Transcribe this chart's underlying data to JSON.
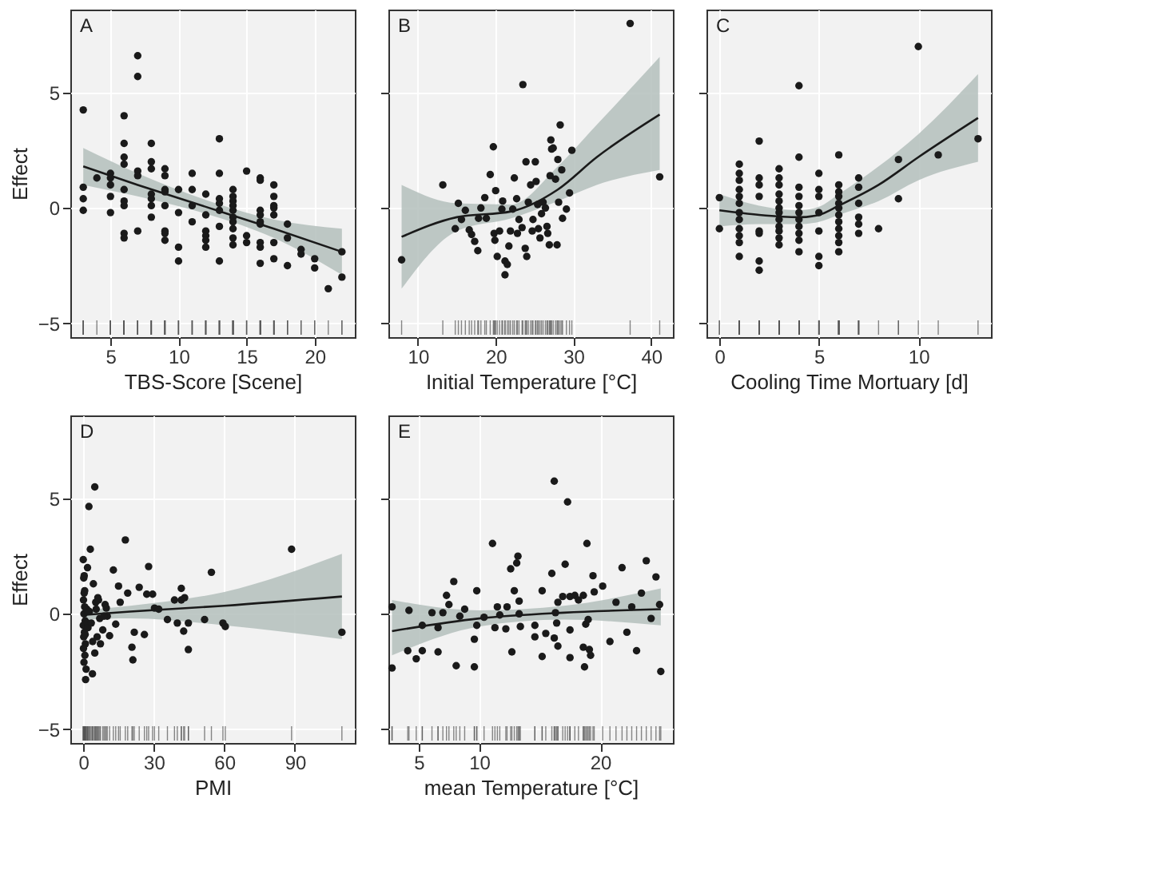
{
  "chart_data": [
    {
      "type": "scatter",
      "title": "A",
      "xlabel": "TBS-Score [Scene]",
      "ylabel": "Effect",
      "xlim": [
        2.05,
        22.95
      ],
      "ylim": [
        -5.6,
        8.6
      ],
      "xticks": [
        5,
        10,
        15,
        20
      ],
      "yticks": [
        -5,
        0,
        5
      ],
      "grid": true,
      "series": [
        {
          "type": "scatter",
          "color": "#1a1a1a",
          "x": [
            3,
            3,
            3,
            3,
            4,
            5,
            5,
            5,
            5,
            5,
            6,
            6,
            6,
            6,
            6,
            6,
            6,
            6,
            6,
            7,
            7,
            7,
            7,
            7,
            8,
            8,
            8,
            8,
            8,
            8,
            8,
            9,
            9,
            9,
            9,
            9,
            9,
            9,
            9,
            10,
            10,
            10,
            10,
            11,
            11,
            11,
            11,
            12,
            12,
            12,
            12,
            12,
            12,
            13,
            13,
            13,
            13,
            13,
            13,
            13,
            14,
            14,
            14,
            14,
            14,
            14,
            14,
            14,
            14,
            14,
            15,
            15,
            15,
            16,
            16,
            16,
            16,
            16,
            16,
            16,
            16,
            16,
            17,
            17,
            17,
            17,
            17,
            17,
            17,
            18,
            18,
            18,
            19,
            19,
            20,
            20,
            21,
            22,
            22
          ],
          "values": [
            4.25,
            0.9,
            0.4,
            -0.1,
            1.3,
            1.5,
            1.3,
            1.0,
            0.5,
            -0.2,
            4.0,
            2.8,
            2.2,
            1.9,
            0.8,
            0.3,
            0.1,
            -1.1,
            -1.3,
            6.6,
            5.7,
            1.6,
            1.4,
            -1.0,
            2.8,
            2.0,
            1.7,
            0.6,
            0.4,
            0.1,
            -0.4,
            1.7,
            1.4,
            0.8,
            0.7,
            0.1,
            -1.0,
            -1.1,
            -1.4,
            0.8,
            -0.2,
            -1.7,
            -2.3,
            1.5,
            0.8,
            0.1,
            -0.6,
            0.6,
            -0.3,
            -1.0,
            -1.2,
            -1.4,
            -1.7,
            3.0,
            1.5,
            0.4,
            0.2,
            -0.1,
            -0.8,
            -2.3,
            0.8,
            0.5,
            0.3,
            0.1,
            -0.1,
            -0.4,
            -0.6,
            -0.9,
            -1.3,
            -1.6,
            1.6,
            -1.2,
            -1.5,
            1.3,
            1.2,
            -0.1,
            -0.3,
            -0.6,
            -0.7,
            -1.5,
            -1.7,
            -2.4,
            1.0,
            0.5,
            0.1,
            0.0,
            -0.3,
            -1.5,
            -2.2,
            -0.7,
            -1.3,
            -2.5,
            -1.8,
            -2.0,
            -2.2,
            -2.6,
            -3.5,
            -1.9,
            -3.0
          ]
        },
        {
          "type": "line",
          "color": "#1a1a1a",
          "x": [
            3,
            7,
            12,
            17,
            22
          ],
          "values": [
            1.8,
            1.0,
            0.05,
            -0.9,
            -1.9
          ],
          "lower": [
            1.0,
            0.5,
            -0.25,
            -1.3,
            -2.9
          ],
          "upper": [
            2.6,
            1.5,
            0.35,
            -0.5,
            -0.9
          ]
        }
      ]
    },
    {
      "type": "scatter",
      "title": "B",
      "xlabel": "Initial Temperature [°C]",
      "xlim": [
        6.2,
        42.8
      ],
      "ylim": [
        -5.6,
        8.6
      ],
      "xticks": [
        10,
        20,
        30,
        40
      ],
      "yticks": [
        -5,
        0,
        5
      ],
      "grid": true,
      "tick_labels": "x",
      "series": [
        {
          "type": "scatter",
          "color": "#1a1a1a",
          "x": [
            7.9,
            13.2,
            14.8,
            15.2,
            15.6,
            16.1,
            16.6,
            16.9,
            17.3,
            17.7,
            17.8,
            18.1,
            18.6,
            18.8,
            19.3,
            19.7,
            19.8,
            19.9,
            20.0,
            20.2,
            20.5,
            20.8,
            20.9,
            21.2,
            21.2,
            21.5,
            21.7,
            21.9,
            22.2,
            22.4,
            22.7,
            22.8,
            23.0,
            23.4,
            23.5,
            23.8,
            23.9,
            24.0,
            24.2,
            24.5,
            24.7,
            24.8,
            25.1,
            25.2,
            25.4,
            25.5,
            25.7,
            25.9,
            26.1,
            26.4,
            26.6,
            26.7,
            26.9,
            27.0,
            27.1,
            27.2,
            27.4,
            27.7,
            27.9,
            28.0,
            28.1,
            28.3,
            28.5,
            28.6,
            29.1,
            29.5,
            29.8,
            37.3,
            41.1
          ],
          "values": [
            -2.25,
            1.0,
            -0.9,
            0.2,
            -0.5,
            -0.1,
            -0.95,
            -1.15,
            -1.45,
            -1.85,
            -0.45,
            0.0,
            0.45,
            -0.45,
            1.45,
            2.65,
            -1.1,
            -1.4,
            0.75,
            -2.1,
            -1.0,
            -0.05,
            0.3,
            -2.3,
            -2.9,
            -2.45,
            -1.65,
            -1.0,
            -0.05,
            1.3,
            0.4,
            -1.1,
            -0.5,
            -0.85,
            5.35,
            -1.75,
            2.0,
            -2.1,
            0.25,
            1.0,
            -1.0,
            -0.5,
            2.0,
            1.15,
            0.15,
            -0.9,
            -1.3,
            -0.25,
            0.25,
            0.0,
            -0.8,
            -1.1,
            -1.6,
            1.4,
            2.95,
            2.55,
            2.6,
            1.25,
            -1.6,
            2.1,
            0.25,
            3.6,
            1.65,
            -0.45,
            -0.05,
            0.65,
            2.5,
            8.0,
            1.35
          ]
        },
        {
          "type": "line",
          "color": "#1a1a1a",
          "x": [
            7.9,
            15,
            22,
            28,
            33,
            41.1
          ],
          "values": [
            -1.25,
            -0.4,
            -0.15,
            0.8,
            2.2,
            4.05
          ],
          "lower": [
            -3.5,
            -1.0,
            -0.45,
            0.3,
            1.0,
            1.65
          ],
          "upper": [
            1.0,
            0.2,
            0.15,
            1.8,
            3.6,
            6.55
          ]
        }
      ]
    },
    {
      "type": "scatter",
      "title": "C",
      "xlabel": "Cooling Time Mortuary [d]",
      "xlim": [
        -0.65,
        13.65
      ],
      "ylim": [
        -5.6,
        8.6
      ],
      "xticks": [
        0,
        5,
        10
      ],
      "yticks": [
        -5,
        0,
        5
      ],
      "grid": true,
      "tick_labels": "x",
      "series": [
        {
          "type": "scatter",
          "color": "#1a1a1a",
          "x": [
            0,
            0,
            1,
            1,
            1,
            1,
            1,
            1,
            1,
            1,
            1,
            1,
            1,
            1,
            2,
            2,
            2,
            2,
            2,
            2,
            2,
            2,
            3,
            3,
            3,
            3,
            3,
            3,
            3,
            3,
            3,
            3,
            3,
            3,
            4,
            4,
            4,
            4,
            4,
            4,
            4,
            4,
            4,
            4,
            4,
            5,
            5,
            5,
            5,
            5,
            5,
            5,
            6,
            6,
            6,
            6,
            6,
            6,
            6,
            6,
            6,
            6,
            6,
            6,
            7,
            7,
            7,
            7,
            7,
            7,
            8,
            9,
            9,
            10,
            11,
            13
          ],
          "values": [
            0.45,
            -0.9,
            1.9,
            1.5,
            1.2,
            0.8,
            0.5,
            0.2,
            -0.2,
            -0.5,
            -0.9,
            -1.2,
            -1.5,
            -2.1,
            2.9,
            1.3,
            1.0,
            0.5,
            -1.0,
            -1.1,
            -2.3,
            -2.7,
            1.7,
            1.3,
            1.0,
            0.6,
            0.3,
            0.0,
            -0.2,
            -0.5,
            -0.8,
            -1.0,
            -1.3,
            -1.6,
            5.3,
            2.2,
            0.9,
            0.5,
            0.1,
            -0.2,
            -0.5,
            -0.8,
            -1.1,
            -1.4,
            -1.9,
            1.5,
            0.8,
            0.5,
            -0.2,
            -1.0,
            -2.1,
            -2.5,
            2.3,
            1.0,
            0.7,
            0.5,
            0.2,
            0.0,
            -0.3,
            -0.6,
            -0.9,
            -1.2,
            -1.5,
            -1.9,
            1.3,
            0.9,
            0.2,
            -0.4,
            -0.7,
            -1.1,
            -0.9,
            2.1,
            0.4,
            7.0,
            2.3,
            3.0
          ]
        },
        {
          "type": "line",
          "color": "#1a1a1a",
          "x": [
            0,
            2,
            4,
            5,
            6,
            8,
            10,
            13
          ],
          "values": [
            -0.1,
            -0.3,
            -0.4,
            -0.3,
            0.1,
            1.0,
            2.2,
            3.9
          ],
          "lower": [
            -0.8,
            -0.7,
            -0.7,
            -0.6,
            -0.3,
            0.3,
            1.2,
            2.0
          ],
          "upper": [
            0.6,
            0.1,
            -0.1,
            0.05,
            0.6,
            1.8,
            3.2,
            5.8
          ]
        }
      ]
    },
    {
      "type": "scatter",
      "title": "D",
      "xlabel": "PMI",
      "ylabel": "Effect",
      "xlim": [
        -5.5,
        115.5
      ],
      "ylim": [
        -5.6,
        8.6
      ],
      "xticks": [
        0,
        30,
        60,
        90
      ],
      "yticks": [
        -5,
        0,
        5
      ],
      "grid": true,
      "series": [
        {
          "type": "scatter",
          "color": "#1a1a1a",
          "x": [
            0,
            0.2,
            0.4,
            0.1,
            0.6,
            0.3,
            0.8,
            0,
            0.5,
            0.2,
            0.9,
            0.1,
            0.7,
            0.3,
            1.2,
            0.6,
            1.5,
            0.8,
            1.8,
            1.0,
            0.4,
            2.0,
            2.4,
            4.9,
            3.0,
            1.8,
            4.3,
            3.9,
            4.9,
            5.9,
            5.3,
            7.3,
            8.3,
            9.3,
            10.2,
            11.2,
            6.5,
            7.0,
            2.6,
            3.4,
            4.0,
            5.5,
            6.2,
            8.8,
            9.8,
            12.8,
            13.8,
            15,
            15.7,
            17.9,
            18.9,
            20.7,
            21.1,
            21.7,
            23.8,
            26,
            27,
            27.8,
            29.5,
            30.3,
            32.1,
            35.8,
            38.8,
            40,
            41.7,
            41.7,
            42.7,
            44.7,
            44.7,
            43.1,
            51.6,
            54.5,
            59.4,
            60.4,
            88.6,
            110
          ],
          "values": [
            2.35,
            1.55,
            0.9,
            0.6,
            0.3,
            0.0,
            -0.3,
            -0.5,
            -0.8,
            -1.0,
            -1.3,
            -1.5,
            -1.8,
            -2.1,
            -2.4,
            1.0,
            0.2,
            -0.9,
            -0.4,
            -2.85,
            1.65,
            -0.6,
            4.65,
            5.5,
            2.8,
            2.0,
            1.3,
            -2.6,
            -1.7,
            -1.0,
            0.5,
            -1.3,
            -0.7,
            0.4,
            -0.1,
            -0.95,
            0.6,
            -0.2,
            0.1,
            -0.4,
            -1.2,
            0.2,
            0.7,
            -0.1,
            0.25,
            1.9,
            -0.45,
            1.2,
            0.5,
            3.2,
            0.9,
            -1.45,
            -2.0,
            -0.8,
            1.15,
            -0.9,
            0.85,
            2.05,
            0.85,
            0.25,
            0.2,
            -0.25,
            0.6,
            -0.4,
            1.1,
            0.6,
            -0.75,
            -0.4,
            -1.55,
            0.7,
            -0.25,
            1.8,
            -0.4,
            -0.55,
            2.8,
            -0.8
          ]
        },
        {
          "type": "line",
          "color": "#1a1a1a",
          "x": [
            0,
            20,
            60,
            110
          ],
          "values": [
            -0.05,
            0.1,
            0.35,
            0.75
          ],
          "lower": [
            -0.25,
            -0.2,
            -0.5,
            -1.1
          ],
          "upper": [
            0.15,
            0.35,
            0.95,
            2.6
          ]
        }
      ]
    },
    {
      "type": "scatter",
      "title": "E",
      "xlabel": "mean Temperature [°C]",
      "xlim": [
        2.5,
        26
      ],
      "ylim": [
        -5.6,
        8.6
      ],
      "xticks": [
        5,
        10,
        20
      ],
      "yticks": [
        -5,
        0,
        5
      ],
      "grid": true,
      "tick_labels": "x",
      "series": [
        {
          "type": "scatter",
          "color": "#1a1a1a",
          "x": [
            2.8,
            2.8,
            4.1,
            4.2,
            4.8,
            5.3,
            5.3,
            6.1,
            6.6,
            6.6,
            7.0,
            7.3,
            7.5,
            7.9,
            8.1,
            8.4,
            8.8,
            9.6,
            9.6,
            9.8,
            9.8,
            10.4,
            11.1,
            11.3,
            11.5,
            11.7,
            12.2,
            12.3,
            12.6,
            12.7,
            12.9,
            13.1,
            13.2,
            13.3,
            13.3,
            13.4,
            14.6,
            14.6,
            15.2,
            15.2,
            15.5,
            16.0,
            16.2,
            16.2,
            16.3,
            16.4,
            16.5,
            16.5,
            16.9,
            17.1,
            17.3,
            17.5,
            17.5,
            17.9,
            17.5,
            18.2,
            18.6,
            18.6,
            18.7,
            18.8,
            18.9,
            19.0,
            19.1,
            19.2,
            19.4,
            19.5,
            20.2,
            20.8,
            21.3,
            21.8,
            22.2,
            22.6,
            23.0,
            23.4,
            23.8,
            24.2,
            24.6,
            25.0,
            24.9
          ],
          "values": [
            0.3,
            -2.35,
            -1.6,
            0.15,
            -1.95,
            -1.6,
            -0.5,
            0.05,
            -0.6,
            -1.65,
            0.05,
            0.8,
            0.4,
            1.4,
            -2.25,
            -0.1,
            0.2,
            -2.3,
            -1.1,
            -0.5,
            1.0,
            -0.15,
            3.05,
            -0.6,
            0.3,
            -0.05,
            -0.65,
            0.3,
            1.95,
            -1.65,
            1.0,
            2.2,
            2.5,
            0.55,
            0.0,
            -0.55,
            -0.5,
            -1.0,
            1.0,
            -1.85,
            -0.85,
            1.75,
            -1.05,
            5.75,
            0.05,
            -0.4,
            -1.4,
            0.5,
            0.75,
            2.15,
            4.85,
            -0.7,
            0.75,
            0.8,
            -1.9,
            0.6,
            0.8,
            -1.45,
            -2.3,
            -0.45,
            3.05,
            -0.25,
            -1.55,
            -1.8,
            1.65,
            0.95,
            1.2,
            -1.2,
            0.5,
            2.0,
            -0.8,
            0.3,
            -1.6,
            0.9,
            2.3,
            -0.2,
            1.6,
            -2.5,
            0.4
          ]
        },
        {
          "type": "line",
          "color": "#1a1a1a",
          "x": [
            2.8,
            10,
            17,
            25
          ],
          "values": [
            -0.75,
            -0.2,
            0.05,
            0.2
          ],
          "lower": [
            -1.8,
            -0.55,
            -0.25,
            -0.5
          ],
          "upper": [
            0.6,
            0.15,
            0.35,
            1.1
          ]
        }
      ]
    }
  ]
}
